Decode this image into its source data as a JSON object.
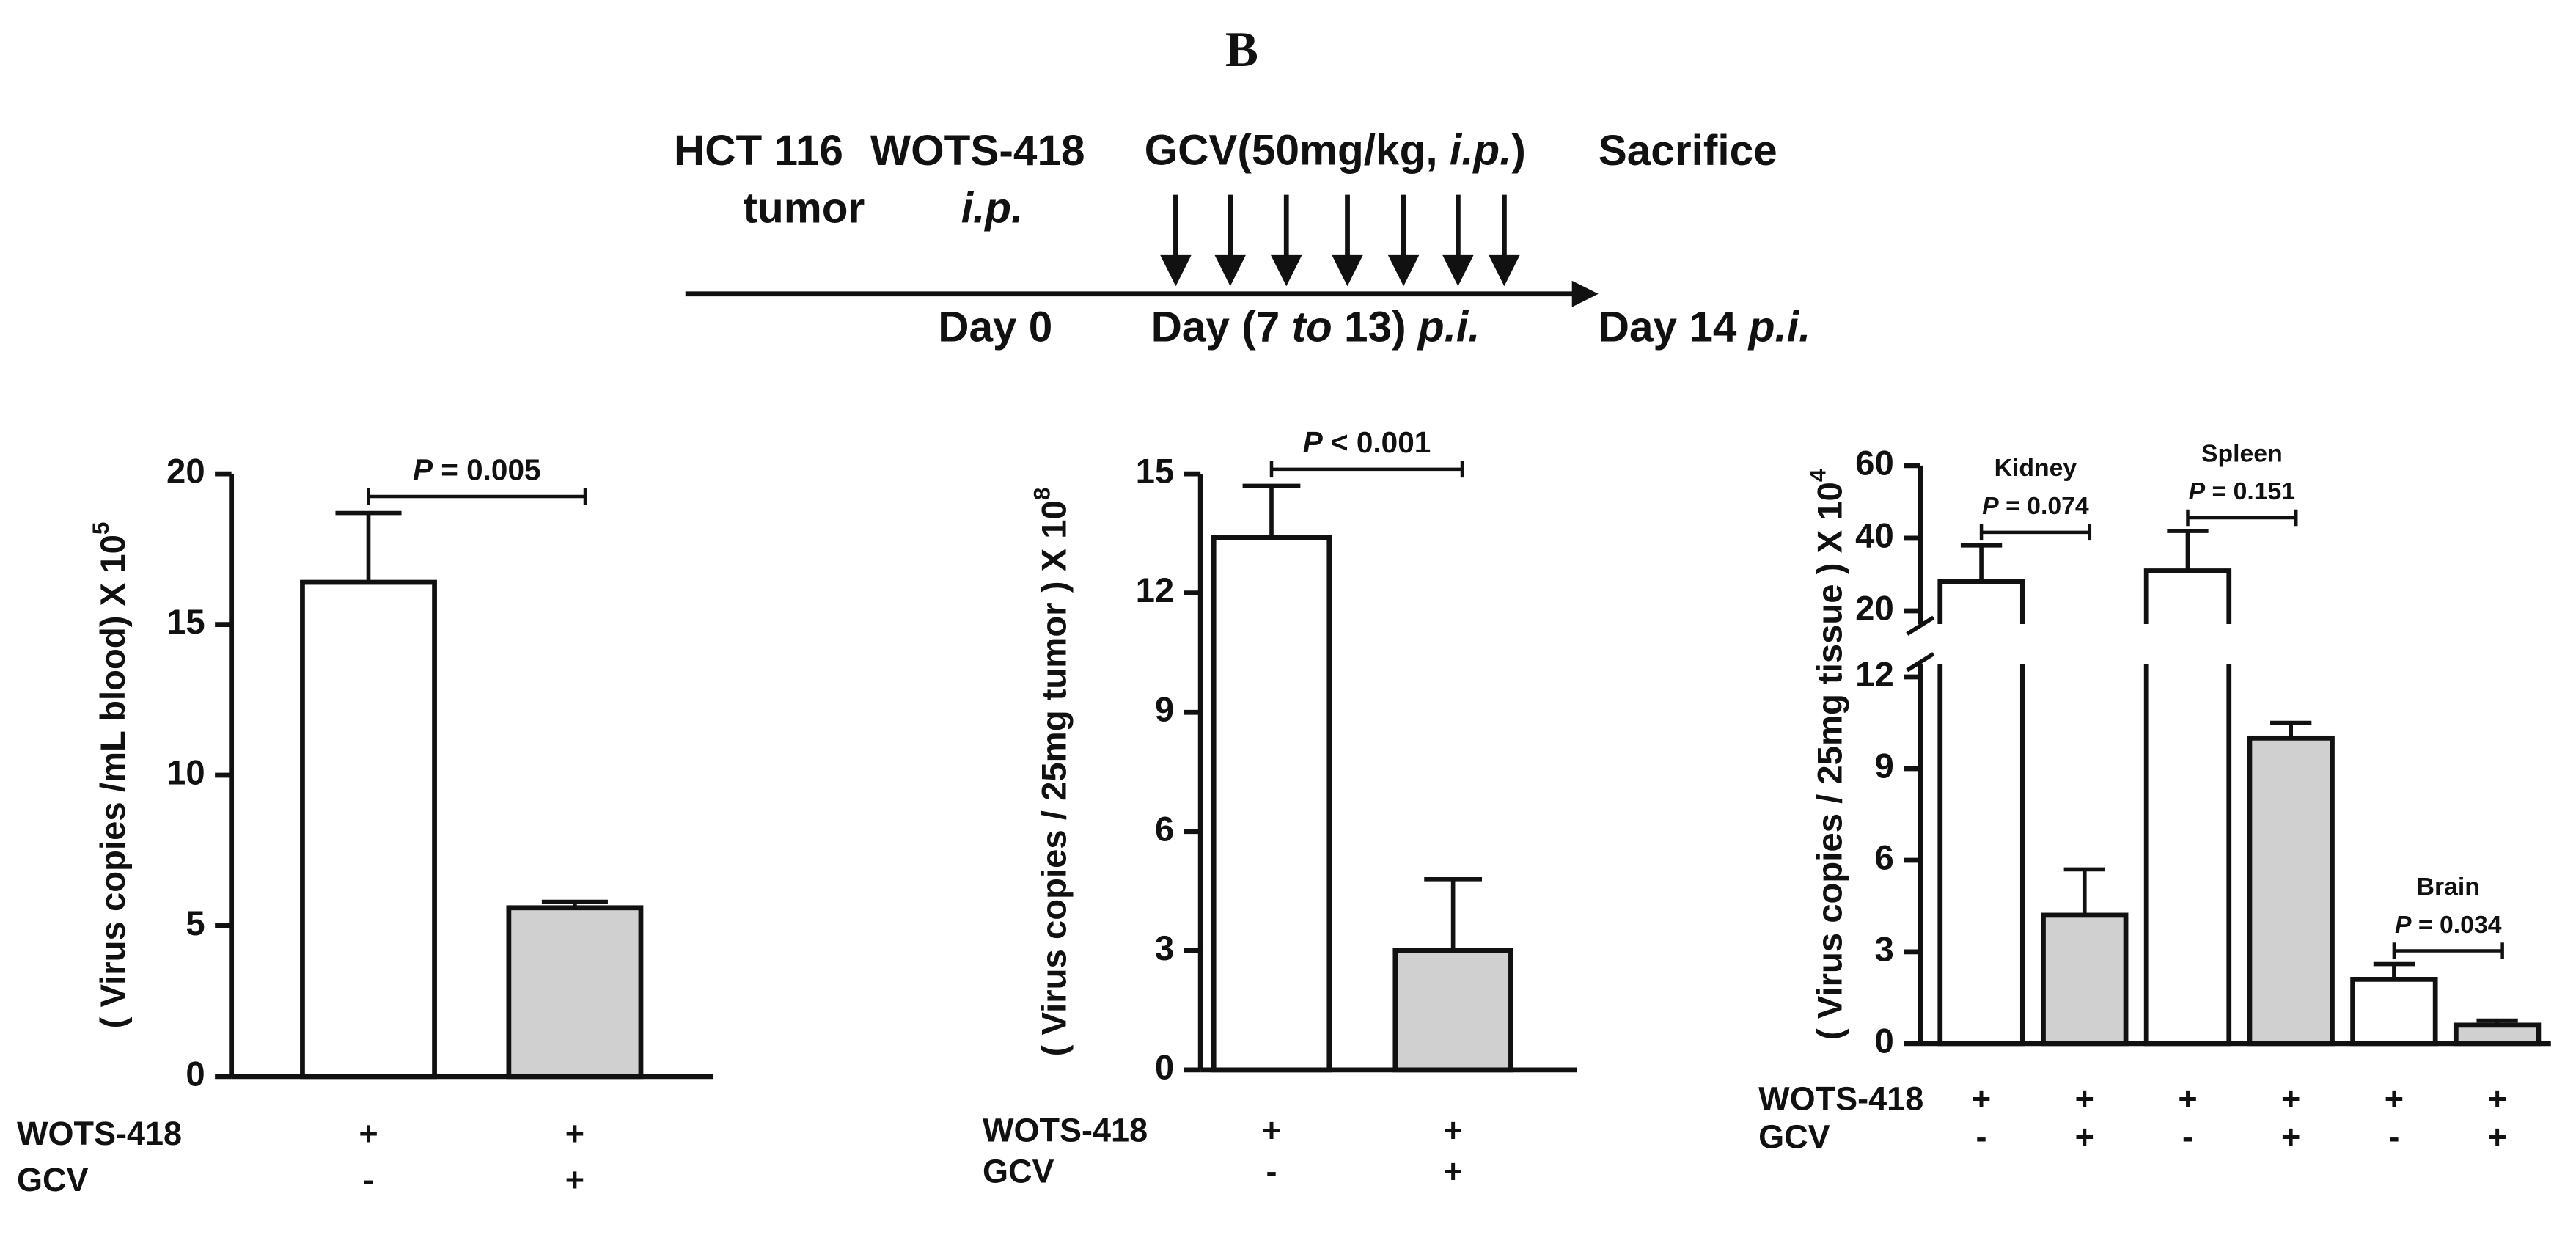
{
  "panel_label": "B",
  "timeline": {
    "tumor": [
      "HCT 116",
      "tumor"
    ],
    "virus": [
      "WOTS-418",
      "i.p."
    ],
    "drug": [
      "GCV(50mg/kg, ",
      "i.p.",
      ")"
    ],
    "end": "Sacrifice",
    "day_virus": "Day 0",
    "day_drug": [
      "Day (7 ",
      "to",
      " 13) ",
      "p.i."
    ],
    "day_end": [
      "Day 14 ",
      "p.i."
    ]
  },
  "chart_data": [
    {
      "type": "bar",
      "ylabel": "( Virus copies /mL blood) X 10",
      "ylabel_exponent": "5",
      "values": [
        16.4,
        5.6
      ],
      "errors": [
        2.3,
        0.2
      ],
      "colors": [
        "#ffffff",
        "#d0d0d0"
      ],
      "ylim": [
        0,
        20
      ],
      "yticks": [
        0,
        5,
        10,
        15,
        20
      ],
      "conditions": [
        {
          "name": "WOTS-418",
          "marks": [
            "+",
            "+"
          ]
        },
        {
          "name": "GCV",
          "marks": [
            "-",
            "+"
          ]
        }
      ],
      "significance": {
        "symbol": "P",
        "text": " = 0.005"
      }
    },
    {
      "type": "bar",
      "ylabel": "( Virus copies / 25mg tumor ) X 10",
      "ylabel_exponent": "8",
      "values": [
        13.4,
        3.0
      ],
      "errors": [
        1.3,
        1.8
      ],
      "colors": [
        "#ffffff",
        "#d0d0d0"
      ],
      "ylim": [
        0,
        15
      ],
      "yticks": [
        0,
        3,
        6,
        9,
        12,
        15
      ],
      "conditions": [
        {
          "name": "WOTS-418",
          "marks": [
            "+",
            "+"
          ]
        },
        {
          "name": "GCV",
          "marks": [
            "-",
            "+"
          ]
        }
      ],
      "significance": {
        "symbol": "P",
        "text": " < 0.001"
      }
    },
    {
      "type": "bar",
      "ylabel": "( Virus copies / 25mg tissue ) X 10",
      "ylabel_exponent": "4",
      "values": [
        28,
        4.2,
        31,
        10.0,
        2.1,
        0.6
      ],
      "errors": [
        10,
        1.5,
        11,
        0.5,
        0.5,
        0.15
      ],
      "colors": [
        "#ffffff",
        "#d0d0d0",
        "#ffffff",
        "#d0d0d0",
        "#ffffff",
        "#d0d0d0"
      ],
      "ylim": [
        0,
        60
      ],
      "ybreak": [
        12,
        20
      ],
      "yticks": [
        0,
        3,
        6,
        9,
        12,
        20,
        40,
        60
      ],
      "conditions": [
        {
          "name": "WOTS-418",
          "marks": [
            "+",
            "+",
            "+",
            "+",
            "+",
            "+"
          ]
        },
        {
          "name": "GCV",
          "marks": [
            "-",
            "+",
            "-",
            "+",
            "-",
            "+"
          ]
        }
      ],
      "groups": [
        {
          "name": "Kidney",
          "symbol": "P",
          "text": " = 0.074"
        },
        {
          "name": "Spleen",
          "symbol": "P",
          "text": " = 0.151"
        },
        {
          "name": "Brain",
          "symbol": "P",
          "text": " = 0.034"
        }
      ]
    }
  ]
}
